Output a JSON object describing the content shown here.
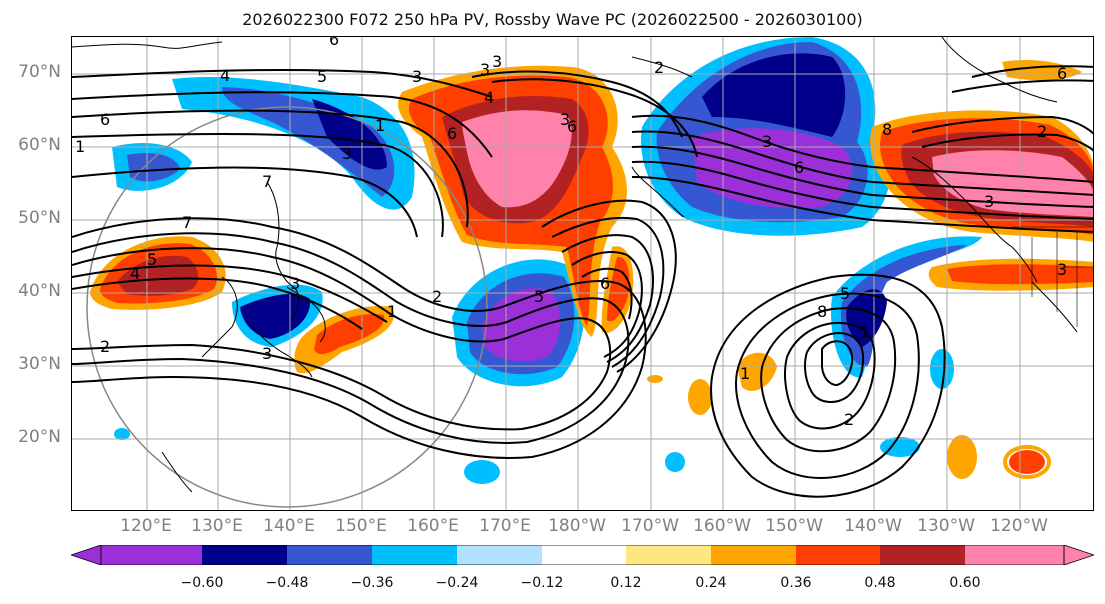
{
  "title": "2026022300 F072 250 hPa PV, Rossby Wave PC (2026022500 - 2026030100)",
  "lat_labels": [
    "70°N",
    "60°N",
    "50°N",
    "40°N",
    "30°N",
    "20°N"
  ],
  "lon_labels": [
    "120°E",
    "130°E",
    "140°E",
    "150°E",
    "160°E",
    "170°E",
    "180°W",
    "170°W",
    "160°W",
    "150°W",
    "140°W",
    "130°W",
    "120°W"
  ],
  "colorbar": {
    "ticks": [
      "−0.60",
      "−0.48",
      "−0.36",
      "−0.24",
      "−0.12",
      "0.12",
      "0.24",
      "0.36",
      "0.48",
      "0.60"
    ],
    "colors": [
      "#9b30d9",
      "#00008b",
      "#3558d2",
      "#00bfff",
      "#b0e2ff",
      "#ffffff",
      "#ffe680",
      "#ffa500",
      "#ff3f00",
      "#b22222",
      "#ff82ab"
    ]
  },
  "map": {
    "contour_labels": [
      "6",
      "4",
      "3",
      "4",
      "6",
      "6",
      "1",
      "7",
      "5",
      "4",
      "3",
      "2",
      "1",
      "3",
      "2",
      "5",
      "6",
      "6",
      "1",
      "5",
      "8",
      "1",
      "2",
      "8",
      "3",
      "3",
      "6",
      "1",
      "3",
      "3",
      "2",
      "6",
      "3",
      "2",
      "7",
      "5",
      "3",
      "3"
    ]
  }
}
